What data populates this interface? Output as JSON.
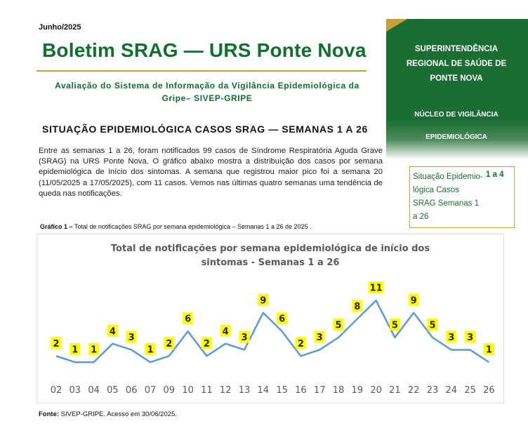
{
  "header": {
    "date": "Junho/2025",
    "title": "Boletim SRAG — URS Ponte Nova",
    "subtitle": "Avaliação do Sistema de Informação da Vigilância Epidemiológica da Gripe– SIVEP-GRIPE"
  },
  "section": {
    "title": "SITUAÇÃO EPIDEMIOLÓGICA CASOS SRAG — SEMANAS 1 A 26",
    "body": "Entre as semanas 1 a 26, foram notificados 99 casos de Síndrome Respiratória Aguda Grave (SRAG) na URS Ponte Nova. O gráfico abaixo mostra a distribuição dos casos por semana epidemiológica de início dos sintomas. A semana que registrou maior pico foi a semana 20 (11/05/2025 a 17/05/2025), com 11 casos. Vemos nas últimas quatro semanas uma tendência de queda nas notificações."
  },
  "side_panel": {
    "org_name": "SUPERINTENDÊNCIA REGIONAL DE SAÚDE DE PONTE NOVA",
    "nucleo": "NÚCLEO DE VIGILÂNCIA EPIDEMIOLÓGICA",
    "toc": {
      "item": "Situação Epidemio-lógica Casos SRAG Semanas 1 a 26",
      "pages": "1 a 4"
    }
  },
  "figure": {
    "caption_label": "Gráfico 1 –",
    "caption_text": " Total de notificações SRAG por semana epidemiológica – Semanas 1 a 26 de 2025 .",
    "source_label": "Fonte:",
    "source_text": " SIVEP-GRIPE. Acesso em 30/06/2025."
  },
  "colors": {
    "brand_green": "#1a6e34",
    "title_green": "#0f6f2e",
    "gold": "#c8a138",
    "line": "#5b9bd5",
    "label_bg": "#ffff00"
  },
  "chart_data": {
    "type": "line",
    "title_line1": "Total de notificações por semana epidemiológica de início dos",
    "title_line2": "sintomas - Semanas 1 a 26",
    "categories": [
      "02",
      "03",
      "04",
      "05",
      "06",
      "07",
      "09",
      "10",
      "11",
      "12",
      "13",
      "14",
      "15",
      "16",
      "17",
      "18",
      "19",
      "20",
      "21",
      "22",
      "23",
      "24",
      "25",
      "26"
    ],
    "values": [
      2,
      1,
      1,
      4,
      3,
      1,
      2,
      6,
      2,
      4,
      3,
      9,
      6,
      2,
      3,
      5,
      8,
      11,
      5,
      9,
      5,
      3,
      3,
      1
    ],
    "ylim": [
      0,
      11
    ],
    "grid": false,
    "legend": "none"
  }
}
